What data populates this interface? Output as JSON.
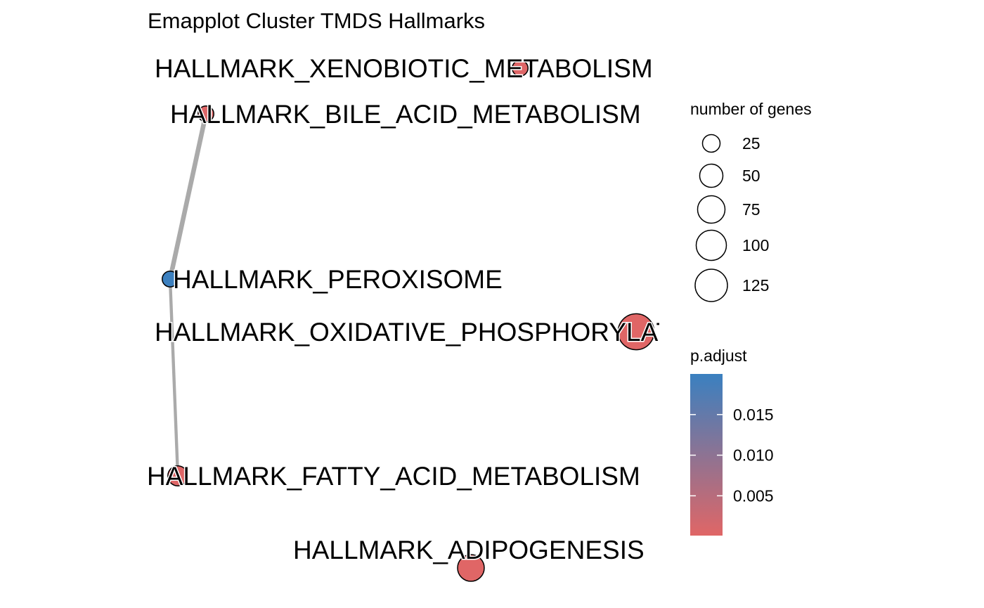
{
  "title": "Emapplot Cluster TMDS Hallmarks",
  "colors": {
    "low_p": "#E06666",
    "high_p": "#3A80C0",
    "edge": "#AAAAAA",
    "node_stroke": "#000000"
  },
  "nodes": [
    {
      "id": "xeno",
      "label": "HALLMARK_XENOBIOTIC_METABOLISM",
      "genes": 6,
      "p_adjust": 0.0003
    },
    {
      "id": "bile",
      "label": "HALLMARK_BILE_ACID_METABOLISM",
      "genes": 6,
      "p_adjust": 0.0003
    },
    {
      "id": "perox",
      "label": "HALLMARK_PEROXISOME",
      "genes": 6,
      "p_adjust": 0.0198
    },
    {
      "id": "oxphos",
      "label": "HALLMARK_OXIDATIVE_PHOSPHORYLATION",
      "genes": 120,
      "p_adjust": 0.0001
    },
    {
      "id": "fatty",
      "label": "HALLMARK_FATTY_ACID_METABOLISM",
      "genes": 18,
      "p_adjust": 0.0003
    },
    {
      "id": "adipo",
      "label": "HALLMARK_ADIPOGENESIS",
      "genes": 50,
      "p_adjust": 0.0001
    }
  ],
  "edges": [
    {
      "from": "bile",
      "to": "perox",
      "weight": 3
    },
    {
      "from": "perox",
      "to": "fatty",
      "weight": 2
    }
  ],
  "legend_size": {
    "title": "number of genes",
    "entries": [
      {
        "label": "25",
        "value": 25
      },
      {
        "label": "50",
        "value": 50
      },
      {
        "label": "75",
        "value": 75
      },
      {
        "label": "100",
        "value": 100
      },
      {
        "label": "125",
        "value": 125
      }
    ]
  },
  "legend_color": {
    "title": "p.adjust",
    "min": 0.0001,
    "max": 0.02,
    "ticks": [
      {
        "label": "0.015",
        "value": 0.015
      },
      {
        "label": "0.010",
        "value": 0.01
      },
      {
        "label": "0.005",
        "value": 0.005
      }
    ]
  }
}
